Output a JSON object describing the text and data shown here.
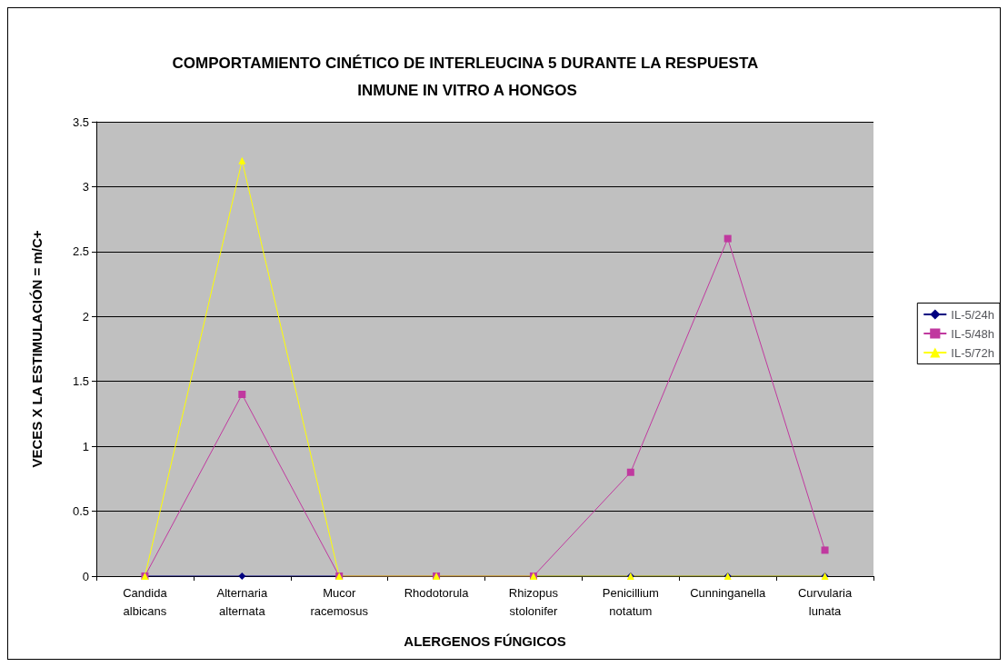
{
  "chart_data": {
    "type": "line",
    "title": "COMPORTAMIENTO CINÉTICO DE INTERLEUCINA 5 DURANTE LA RESPUESTA INMUNE IN VITRO A HONGOS",
    "xlabel": "ALERGENOS FÚNGICOS",
    "ylabel": "VECES X LA ESTIMULACIÓN = m/C+",
    "categories": [
      "Candida albicans",
      "Alternaria alternata",
      "Mucor racemosus",
      "Rhodotorula",
      "Rhizopus stolonifer",
      "Penicillium notatum",
      "Cunninganella",
      "Curvularia lunata"
    ],
    "series": [
      {
        "name": "IL-5/24h",
        "color": "#000080",
        "marker": "diamond",
        "values": [
          0,
          0,
          0,
          0,
          0,
          0,
          0,
          0
        ]
      },
      {
        "name": "IL-5/48h",
        "color": "#c0399f",
        "marker": "square",
        "values": [
          0,
          1.4,
          0,
          0,
          0,
          0.8,
          2.6,
          0.2
        ]
      },
      {
        "name": "IL-5/72h",
        "color": "#ffff00",
        "marker": "triangle",
        "values": [
          0,
          3.2,
          0,
          0,
          0,
          0,
          0,
          0
        ]
      }
    ],
    "ylim": [
      0,
      3.5
    ],
    "yticks": [
      0,
      0.5,
      1,
      1.5,
      2,
      2.5,
      3,
      3.5
    ],
    "grid": "y",
    "legend": "right",
    "line_style": "solid"
  }
}
